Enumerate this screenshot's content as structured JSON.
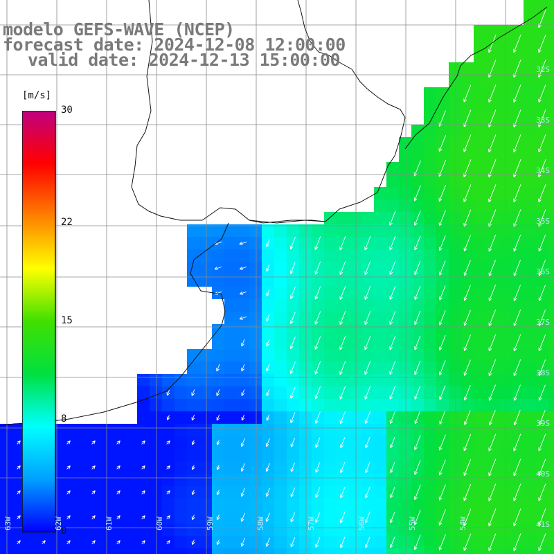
{
  "title": {
    "line1": "modelo GEFS-WAVE (NCEP)",
    "line2": "forecast date: 2024-12-08 12:00:00",
    "line3": "valid date: 2024-12-13 15:00:00"
  },
  "colorbar": {
    "unit": "[m/s]",
    "ticks": [
      {
        "value": 30,
        "label": "30"
      },
      {
        "value": 22,
        "label": "22"
      },
      {
        "value": 15,
        "label": "15"
      },
      {
        "value": 8,
        "label": "8"
      },
      {
        "value": 0,
        "label": "0"
      }
    ],
    "range": [
      0,
      30
    ],
    "stops": [
      "#0000ff",
      "#00a0ff",
      "#00ffff",
      "#00e040",
      "#40e000",
      "#ffff00",
      "#ff8000",
      "#ff0000",
      "#c00080"
    ]
  },
  "map": {
    "lat_labels": [
      "32S",
      "33S",
      "34S",
      "35S",
      "36S",
      "37S",
      "38S",
      "39S",
      "40S",
      "41S"
    ],
    "lon_labels": [
      "63W",
      "62W",
      "61W",
      "60W",
      "59W",
      "58W",
      "57W",
      "56W",
      "55W",
      "54W"
    ],
    "colors": {
      "land": "#ffffff",
      "coast": "#111111",
      "grid": "#8a8a8a",
      "arrow": "#ffffff",
      "labels": "#7a7a7a"
    }
  }
}
